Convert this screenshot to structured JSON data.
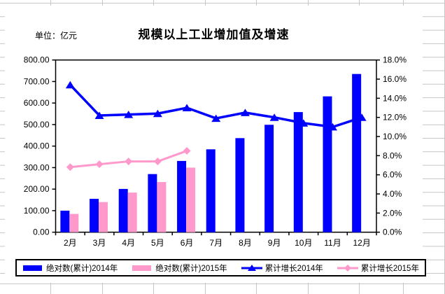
{
  "chart_data": {
    "type": "combo-bar-line",
    "title": "规模以上工业增加值及增速",
    "unit_label": "单位：亿元",
    "categories": [
      "2月",
      "3月",
      "4月",
      "5月",
      "6月",
      "7月",
      "8月",
      "9月",
      "10月",
      "11月",
      "12月"
    ],
    "series": [
      {
        "name": "绝对数(累计)2014年",
        "type": "bar",
        "axis": "left",
        "color": "#0000FF",
        "marker": "rect",
        "values": [
          100,
          155,
          201,
          270,
          331,
          385,
          437,
          499,
          558,
          631,
          735
        ]
      },
      {
        "name": "绝对数(累计)2015年",
        "type": "bar",
        "axis": "left",
        "color": "#FF99CC",
        "marker": "rect",
        "values": [
          85,
          140,
          184,
          233,
          300,
          null,
          null,
          null,
          null,
          null,
          null
        ]
      },
      {
        "name": "累计增长2014年",
        "type": "line",
        "axis": "right",
        "color": "#0000FF",
        "marker": "triangle",
        "values": [
          15.4,
          12.2,
          12.3,
          12.4,
          13.0,
          11.9,
          12.5,
          12.0,
          11.4,
          11.0,
          12.0
        ]
      },
      {
        "name": "累计增长2015年",
        "type": "line",
        "axis": "right",
        "color": "#FF99CC",
        "marker": "diamond",
        "values": [
          6.8,
          7.1,
          7.4,
          7.4,
          8.5,
          null,
          null,
          null,
          null,
          null,
          null
        ]
      }
    ],
    "left_axis": {
      "min": 0,
      "max": 800,
      "step": 100,
      "tick_labels": [
        "0.00",
        "100.00",
        "200.00",
        "300.00",
        "400.00",
        "500.00",
        "600.00",
        "700.00",
        "800.00"
      ]
    },
    "right_axis": {
      "min": 0,
      "max": 18,
      "step": 2,
      "tick_labels": [
        "0.0%",
        "2.0%",
        "4.0%",
        "6.0%",
        "8.0%",
        "10.0%",
        "12.0%",
        "14.0%",
        "16.0%",
        "18.0%"
      ]
    },
    "legend_position": "bottom",
    "grid": "off",
    "plot_background": "#FFFFFF",
    "spreadsheet_gridline_color": "#C6C6C6"
  }
}
